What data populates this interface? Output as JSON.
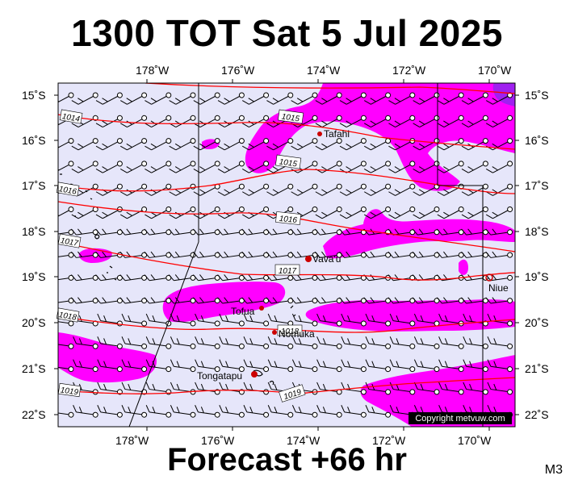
{
  "header": {
    "title": "1300 TOT Sat 5 Jul 2025"
  },
  "footer": {
    "forecast": "Forecast +66 hr",
    "model": "M3"
  },
  "map": {
    "copyright": "Copyright metvuw.com",
    "lon_ticks_top": [
      "178˚W",
      "176˚W",
      "174˚W",
      "172˚W",
      "170˚W"
    ],
    "lon_ticks_bottom": [
      "178˚W",
      "176˚W",
      "174˚W",
      "172˚W",
      "170˚W"
    ],
    "lat_ticks_left": [
      "15˚S",
      "16˚S",
      "17˚S",
      "18˚S",
      "19˚S",
      "20˚S",
      "21˚S",
      "22˚S"
    ],
    "lat_ticks_right": [
      "15˚S",
      "16˚S",
      "17˚S",
      "18˚S",
      "19˚S",
      "20˚S",
      "21˚S",
      "22˚S"
    ],
    "places": [
      {
        "name": "Tafahi"
      },
      {
        "name": "Vava'u"
      },
      {
        "name": "Niue"
      },
      {
        "name": "Tofua"
      },
      {
        "name": "Nomuka"
      },
      {
        "name": "Tongatapu"
      }
    ],
    "isobar_labels": [
      "1014",
      "1015",
      "1015",
      "1016",
      "1016",
      "1017",
      "1017",
      "1018",
      "1018",
      "1019",
      "1019"
    ],
    "colors": {
      "background": "#e6e6fa",
      "rain": "#ff00ff",
      "rain_heavy": "#a020f0",
      "isobar": "#ff0000",
      "marker": "#cc0000"
    }
  }
}
